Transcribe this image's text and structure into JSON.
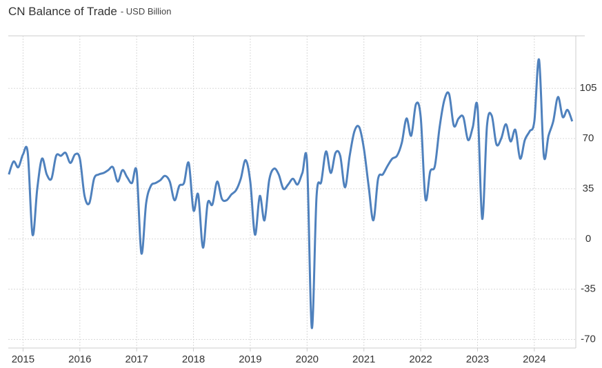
{
  "chart_data": {
    "type": "line",
    "title": "CN Balance of Trade",
    "subtitle": "- USD Billion",
    "color": "#4f81bd",
    "grid": true,
    "x": [
      2014.75,
      2014.833,
      2014.917,
      2015,
      2015.083,
      2015.167,
      2015.25,
      2015.333,
      2015.417,
      2015.5,
      2015.583,
      2015.667,
      2015.75,
      2015.833,
      2015.917,
      2016,
      2016.083,
      2016.167,
      2016.25,
      2016.333,
      2016.417,
      2016.5,
      2016.583,
      2016.667,
      2016.75,
      2016.833,
      2016.917,
      2017,
      2017.083,
      2017.167,
      2017.25,
      2017.333,
      2017.417,
      2017.5,
      2017.583,
      2017.667,
      2017.75,
      2017.833,
      2017.917,
      2018,
      2018.083,
      2018.167,
      2018.25,
      2018.333,
      2018.417,
      2018.5,
      2018.583,
      2018.667,
      2018.75,
      2018.833,
      2018.917,
      2019,
      2019.083,
      2019.167,
      2019.25,
      2019.333,
      2019.417,
      2019.5,
      2019.583,
      2019.667,
      2019.75,
      2019.833,
      2019.917,
      2020,
      2020.083,
      2020.167,
      2020.25,
      2020.333,
      2020.417,
      2020.5,
      2020.583,
      2020.667,
      2020.75,
      2020.833,
      2020.917,
      2021,
      2021.083,
      2021.167,
      2021.25,
      2021.333,
      2021.417,
      2021.5,
      2021.583,
      2021.667,
      2021.75,
      2021.833,
      2021.917,
      2022,
      2022.083,
      2022.167,
      2022.25,
      2022.333,
      2022.417,
      2022.5,
      2022.583,
      2022.667,
      2022.75,
      2022.833,
      2022.917,
      2023,
      2023.083,
      2023.167,
      2023.25,
      2023.333,
      2023.417,
      2023.5,
      2023.583,
      2023.667,
      2023.75,
      2023.833,
      2023.917,
      2024,
      2024.083,
      2024.167,
      2024.25,
      2024.333,
      2024.417,
      2024.5,
      2024.583,
      2024.667
    ],
    "values": [
      45,
      54,
      50,
      59,
      60,
      3,
      35,
      56,
      45,
      42,
      58,
      58,
      60,
      53,
      59,
      56,
      30,
      25,
      42,
      45,
      46,
      48,
      50,
      40,
      48,
      43,
      39,
      47,
      -10,
      25,
      37,
      39,
      41,
      44,
      40,
      27,
      37,
      39,
      53,
      20,
      31,
      -6,
      25,
      24,
      40,
      28,
      27,
      31,
      34,
      42,
      55,
      40,
      3,
      30,
      13,
      41,
      49,
      45,
      35,
      38,
      42,
      38,
      46,
      53,
      -62,
      30,
      40,
      61,
      46,
      60,
      58,
      36,
      58,
      75,
      78,
      63,
      37,
      13,
      42,
      45,
      51,
      56,
      58,
      67,
      84,
      72,
      94,
      85,
      28,
      47,
      51,
      78,
      97,
      101,
      79,
      84,
      85,
      69,
      78,
      92,
      14,
      79,
      86,
      66,
      70,
      80,
      68,
      76,
      56,
      69,
      75,
      82,
      125,
      58,
      72,
      82,
      99,
      85,
      90,
      82
    ],
    "xlim": [
      2014.74,
      2024.73
    ],
    "xticks": [
      2015,
      2016,
      2017,
      2018,
      2019,
      2020,
      2021,
      2022,
      2023,
      2024
    ],
    "ylim": [
      -76,
      141.6
    ],
    "yticks": [
      -70,
      -35,
      0,
      35,
      70,
      105
    ]
  }
}
